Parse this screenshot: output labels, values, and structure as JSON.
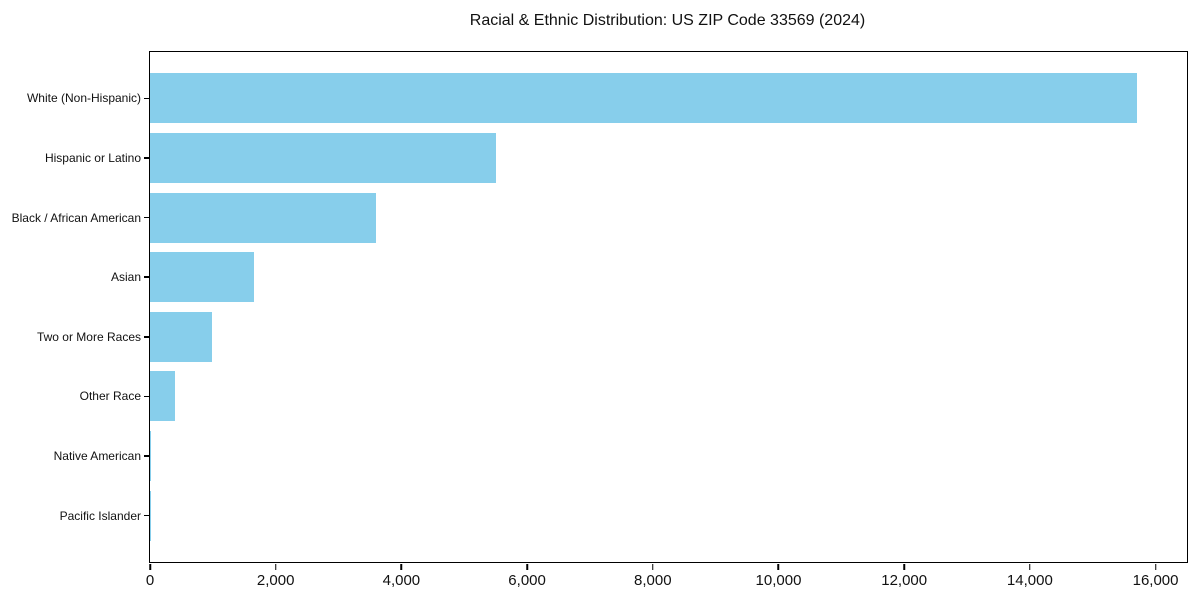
{
  "chart_data": {
    "type": "bar",
    "orientation": "horizontal",
    "title": "Racial & Ethnic Distribution: US ZIP Code 33569 (2024)",
    "categories": [
      "White (Non-Hispanic)",
      "Hispanic or Latino",
      "Black / African American",
      "Asian",
      "Two or More Races",
      "Other Race",
      "Native American",
      "Pacific Islander"
    ],
    "values": [
      15700,
      5500,
      3600,
      1650,
      980,
      400,
      20,
      10
    ],
    "xlabel": "",
    "ylabel": "",
    "xlim": [
      0,
      16500
    ],
    "x_ticks": [
      0,
      2000,
      4000,
      6000,
      8000,
      10000,
      12000,
      14000,
      16000
    ],
    "x_tick_labels": [
      "0",
      "2,000",
      "4,000",
      "6,000",
      "8,000",
      "10,000",
      "12,000",
      "14,000",
      "16,000"
    ],
    "bar_color": "#87CEEB",
    "spine_color": "#000000",
    "text_color": "#111111",
    "background": "#FFFFFF",
    "grid": false,
    "legend": "none"
  }
}
